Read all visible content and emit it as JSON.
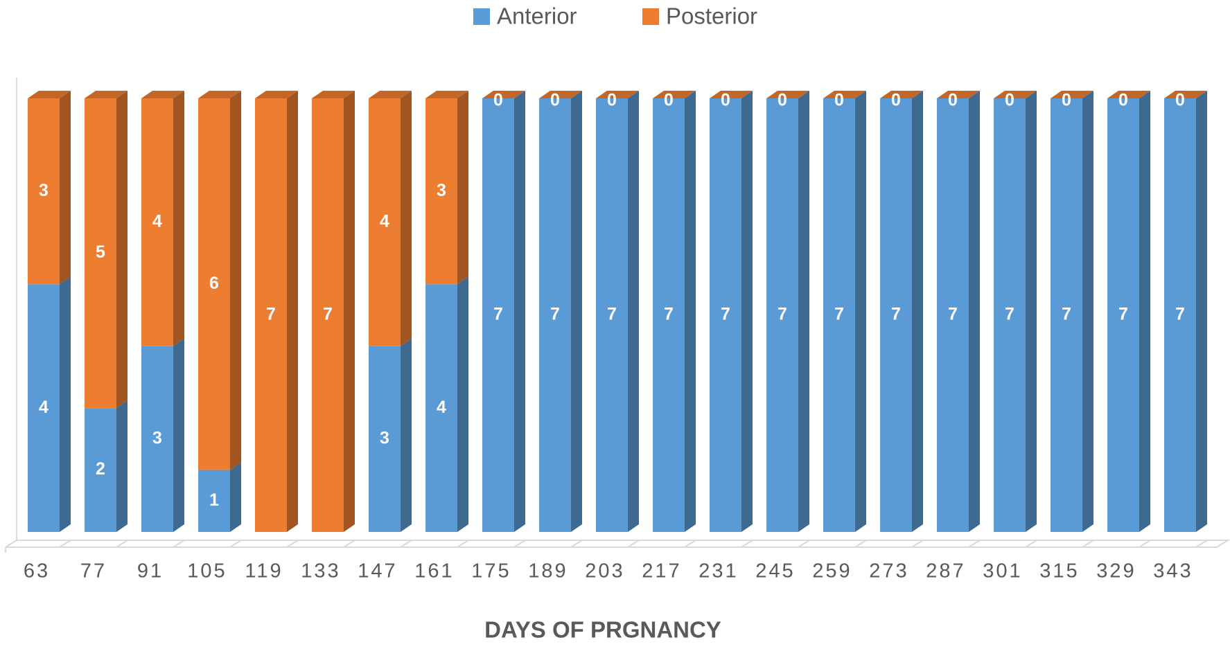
{
  "chart_data": {
    "type": "bar",
    "stacked": true,
    "x_label": "DAYS OF PRGNANCY",
    "categories": [
      "63",
      "77",
      "91",
      "105",
      "119",
      "133",
      "147",
      "161",
      "175",
      "189",
      "203",
      "217",
      "231",
      "245",
      "259",
      "273",
      "287",
      "301",
      "315",
      "329",
      "343"
    ],
    "series": [
      {
        "name": "Anterior",
        "color": "#5b9bd5",
        "values": [
          4,
          2,
          3,
          1,
          0,
          0,
          3,
          4,
          7,
          7,
          7,
          7,
          7,
          7,
          7,
          7,
          7,
          7,
          7,
          7,
          7
        ]
      },
      {
        "name": "Posterior",
        "color": "#ed7d31",
        "values": [
          3,
          5,
          4,
          6,
          7,
          7,
          4,
          3,
          0,
          0,
          0,
          0,
          0,
          0,
          0,
          0,
          0,
          0,
          0,
          0,
          0
        ]
      }
    ],
    "legend": "top"
  }
}
